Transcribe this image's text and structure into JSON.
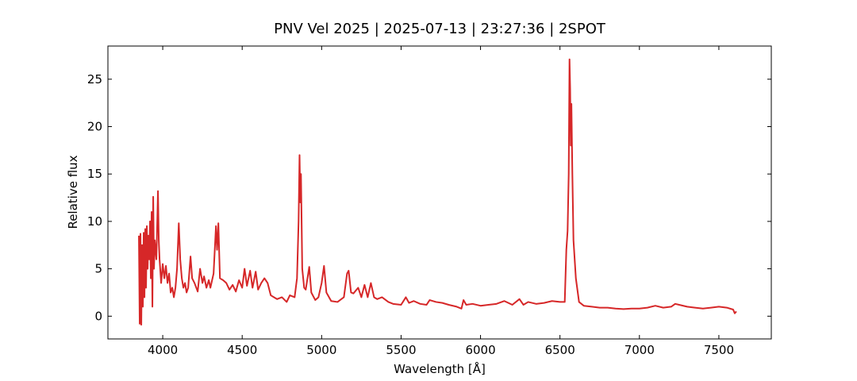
{
  "chart_data": {
    "type": "line",
    "title": "PNV Vel 2025 | 2025-07-13 | 23:27:36 | 2SPOT",
    "x_label": "Wavelength [Å]",
    "y_label": "Relative flux",
    "xlim": [
      3655,
      7830
    ],
    "ylim": [
      -2.4,
      28.5
    ],
    "xticks": [
      4000,
      4500,
      5000,
      5500,
      6000,
      6500,
      7000,
      7500
    ],
    "yticks": [
      0,
      5,
      10,
      15,
      20,
      25
    ],
    "grid": false,
    "series": [
      {
        "color": "#d62728",
        "x": [
          3850,
          3855,
          3860,
          3865,
          3870,
          3875,
          3880,
          3885,
          3890,
          3895,
          3900,
          3905,
          3910,
          3915,
          3920,
          3925,
          3930,
          3935,
          3940,
          3945,
          3950,
          3960,
          3970,
          3975,
          3980,
          3990,
          4000,
          4010,
          4020,
          4030,
          4040,
          4050,
          4060,
          4070,
          4080,
          4090,
          4101,
          4110,
          4120,
          4130,
          4140,
          4150,
          4160,
          4175,
          4185,
          4200,
          4220,
          4235,
          4250,
          4260,
          4275,
          4290,
          4300,
          4320,
          4335,
          4342,
          4350,
          4360,
          4380,
          4400,
          4420,
          4440,
          4460,
          4480,
          4500,
          4515,
          4530,
          4550,
          4565,
          4585,
          4600,
          4620,
          4640,
          4660,
          4680,
          4700,
          4720,
          4750,
          4780,
          4800,
          4830,
          4845,
          4855,
          4861,
          4866,
          4870,
          4878,
          4890,
          4900,
          4922,
          4935,
          4960,
          4980,
          5000,
          5015,
          5030,
          5060,
          5100,
          5140,
          5160,
          5170,
          5185,
          5200,
          5230,
          5250,
          5270,
          5290,
          5310,
          5330,
          5350,
          5380,
          5420,
          5450,
          5500,
          5530,
          5550,
          5580,
          5620,
          5660,
          5680,
          5720,
          5760,
          5800,
          5850,
          5880,
          5893,
          5910,
          5950,
          6000,
          6050,
          6100,
          6150,
          6200,
          6245,
          6270,
          6300,
          6350,
          6400,
          6450,
          6500,
          6530,
          6540,
          6548,
          6555,
          6560,
          6564,
          6568,
          6572,
          6578,
          6585,
          6600,
          6620,
          6650,
          6700,
          6750,
          6800,
          6850,
          6900,
          6950,
          7000,
          7050,
          7100,
          7150,
          7200,
          7225,
          7250,
          7300,
          7350,
          7400,
          7450,
          7500,
          7550,
          7590,
          7600,
          7610
        ],
        "values": [
          8.5,
          -0.8,
          8.7,
          -0.9,
          7.5,
          1,
          8.8,
          2,
          9.2,
          3,
          9.5,
          5,
          8.5,
          6,
          10,
          4,
          11,
          1,
          12.6,
          5,
          8,
          6,
          13.2,
          8,
          6,
          3.5,
          5.5,
          4,
          5.3,
          3.5,
          4.5,
          2.5,
          3,
          2,
          3,
          5,
          9.8,
          6,
          4,
          3,
          3.5,
          2.5,
          3,
          6.3,
          4,
          3.5,
          2.6,
          5,
          3.5,
          4.2,
          3,
          3.8,
          3,
          4.5,
          9.5,
          7,
          9.8,
          4,
          3.8,
          3.5,
          2.8,
          3.3,
          2.6,
          3.8,
          3,
          5,
          3.2,
          4.8,
          3,
          4.7,
          2.8,
          3.5,
          4,
          3.5,
          2.2,
          2,
          1.8,
          2,
          1.5,
          2.2,
          2,
          4,
          10,
          17,
          12,
          15,
          5,
          3,
          2.8,
          5.2,
          2.5,
          1.7,
          2,
          3.5,
          5.3,
          2.5,
          1.6,
          1.5,
          2,
          4.5,
          4.8,
          2.5,
          2.4,
          3,
          2,
          3.3,
          2,
          3.5,
          2,
          1.8,
          2,
          1.5,
          1.3,
          1.2,
          2,
          1.4,
          1.6,
          1.3,
          1.2,
          1.7,
          1.5,
          1.4,
          1.2,
          1,
          0.8,
          1.7,
          1.2,
          1.3,
          1.1,
          1.2,
          1.3,
          1.6,
          1.2,
          1.8,
          1.2,
          1.5,
          1.3,
          1.4,
          1.6,
          1.5,
          1.5,
          7,
          9,
          15,
          27.1,
          24,
          18,
          22.4,
          15,
          8,
          4,
          1.5,
          1.1,
          1.0,
          0.9,
          0.9,
          0.8,
          0.75,
          0.8,
          0.8,
          0.9,
          1.1,
          0.9,
          1.0,
          1.3,
          1.2,
          1.0,
          0.9,
          0.8,
          0.9,
          1.0,
          0.9,
          0.7,
          0.3,
          0.5
        ]
      }
    ]
  }
}
